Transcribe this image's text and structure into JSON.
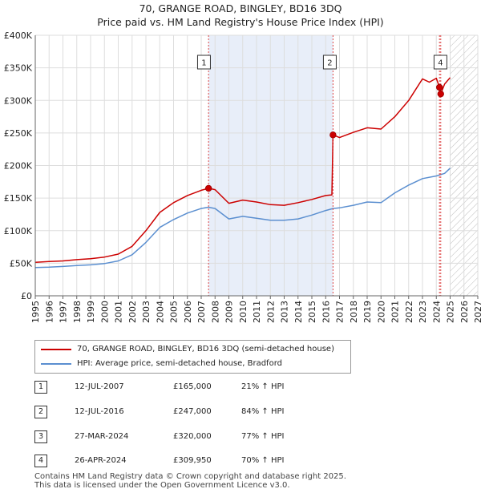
{
  "chart_data": {
    "type": "line",
    "title": "70, GRANGE ROAD, BINGLEY, BD16 3DQ",
    "subtitle": "Price paid vs. HM Land Registry's House Price Index (HPI)",
    "xlim": [
      1995,
      2027
    ],
    "ylim": [
      0,
      400000
    ],
    "x_ticks": [
      "1995",
      "1996",
      "1997",
      "1998",
      "1999",
      "2000",
      "2001",
      "2002",
      "2003",
      "2004",
      "2005",
      "2006",
      "2007",
      "2008",
      "2009",
      "2010",
      "2011",
      "2012",
      "2013",
      "2014",
      "2015",
      "2016",
      "2017",
      "2018",
      "2019",
      "2020",
      "2021",
      "2022",
      "2023",
      "2024",
      "2025",
      "2026",
      "2027"
    ],
    "y_ticks": [
      {
        "value": 0,
        "label": "£0"
      },
      {
        "value": 50000,
        "label": "£50K"
      },
      {
        "value": 100000,
        "label": "£100K"
      },
      {
        "value": 150000,
        "label": "£150K"
      },
      {
        "value": 200000,
        "label": "£200K"
      },
      {
        "value": 250000,
        "label": "£250K"
      },
      {
        "value": 300000,
        "label": "£300K"
      },
      {
        "value": 350000,
        "label": "£350K"
      },
      {
        "value": 400000,
        "label": "£400K"
      }
    ],
    "shaded_period": [
      2007.53,
      2016.53
    ],
    "forecast_hatch_start": 2025.0,
    "series": [
      {
        "name": "70, GRANGE ROAD, BINGLEY, BD16 3DQ (semi-detached house)",
        "color": "#cc0000",
        "points": [
          [
            1995,
            51500
          ],
          [
            1996,
            52500
          ],
          [
            1997,
            53500
          ],
          [
            1998,
            55500
          ],
          [
            1999,
            57000
          ],
          [
            2000,
            59500
          ],
          [
            2001,
            64000
          ],
          [
            2002,
            76000
          ],
          [
            2003,
            100000
          ],
          [
            2004,
            128000
          ],
          [
            2005,
            143000
          ],
          [
            2006,
            154000
          ],
          [
            2007,
            162000
          ],
          [
            2007.53,
            165000
          ],
          [
            2008,
            163000
          ],
          [
            2009,
            142000
          ],
          [
            2010,
            147000
          ],
          [
            2011,
            144000
          ],
          [
            2012,
            140000
          ],
          [
            2013,
            139000
          ],
          [
            2014,
            143000
          ],
          [
            2015,
            148000
          ],
          [
            2016,
            154000
          ],
          [
            2016.45,
            155000
          ],
          [
            2016.53,
            247000
          ],
          [
            2017,
            243000
          ],
          [
            2018,
            251000
          ],
          [
            2019,
            258000
          ],
          [
            2020,
            256000
          ],
          [
            2021,
            275000
          ],
          [
            2022,
            300000
          ],
          [
            2023,
            333000
          ],
          [
            2023.5,
            328000
          ],
          [
            2024,
            334000
          ],
          [
            2024.23,
            320000
          ],
          [
            2024.32,
            309950
          ],
          [
            2024.6,
            325000
          ],
          [
            2025,
            335000
          ]
        ]
      },
      {
        "name": "HPI: Average price, semi-detached house, Bradford",
        "color": "#5b8fd0",
        "points": [
          [
            1995,
            43500
          ],
          [
            1996,
            44000
          ],
          [
            1997,
            45000
          ],
          [
            1998,
            46500
          ],
          [
            1999,
            47500
          ],
          [
            2000,
            49500
          ],
          [
            2001,
            53500
          ],
          [
            2002,
            63000
          ],
          [
            2003,
            82000
          ],
          [
            2004,
            105000
          ],
          [
            2005,
            117000
          ],
          [
            2006,
            127000
          ],
          [
            2007,
            134000
          ],
          [
            2007.53,
            136000
          ],
          [
            2008,
            134000
          ],
          [
            2009,
            118000
          ],
          [
            2010,
            122000
          ],
          [
            2011,
            119000
          ],
          [
            2012,
            116000
          ],
          [
            2013,
            116000
          ],
          [
            2014,
            118000
          ],
          [
            2015,
            124000
          ],
          [
            2016,
            131000
          ],
          [
            2016.53,
            134000
          ],
          [
            2017,
            135000
          ],
          [
            2018,
            139000
          ],
          [
            2019,
            144000
          ],
          [
            2020,
            143000
          ],
          [
            2021,
            158000
          ],
          [
            2022,
            170000
          ],
          [
            2023,
            180000
          ],
          [
            2024,
            184000
          ],
          [
            2024.6,
            188000
          ],
          [
            2025,
            196000
          ]
        ]
      }
    ],
    "sales": [
      {
        "label": "1",
        "x": 2007.53,
        "y": 165000
      },
      {
        "label": "2",
        "x": 2016.53,
        "y": 247000
      },
      {
        "label": "3",
        "x": 2024.23,
        "y": 320000
      },
      {
        "label": "4",
        "x": 2024.32,
        "y": 309950
      }
    ],
    "box_markers": [
      {
        "label": "1",
        "x": 2007.2
      },
      {
        "label": "2",
        "x": 2016.3
      },
      {
        "label": "4",
        "x": 2024.3
      }
    ]
  },
  "legend": [
    {
      "label": "70, GRANGE ROAD, BINGLEY, BD16 3DQ (semi-detached house)",
      "color": "#cc0000"
    },
    {
      "label": "HPI: Average price, semi-detached house, Bradford",
      "color": "#5b8fd0"
    }
  ],
  "transactions": [
    {
      "num": "1",
      "date": "12-JUL-2007",
      "price": "£165,000",
      "hpi": "21% ↑ HPI"
    },
    {
      "num": "2",
      "date": "12-JUL-2016",
      "price": "£247,000",
      "hpi": "84% ↑ HPI"
    },
    {
      "num": "3",
      "date": "27-MAR-2024",
      "price": "£320,000",
      "hpi": "77% ↑ HPI"
    },
    {
      "num": "4",
      "date": "26-APR-2024",
      "price": "£309,950",
      "hpi": "70% ↑ HPI"
    }
  ],
  "footer": {
    "line1": "Contains HM Land Registry data © Crown copyright and database right 2025.",
    "line2": "This data is licensed under the Open Government Licence v3.0."
  }
}
